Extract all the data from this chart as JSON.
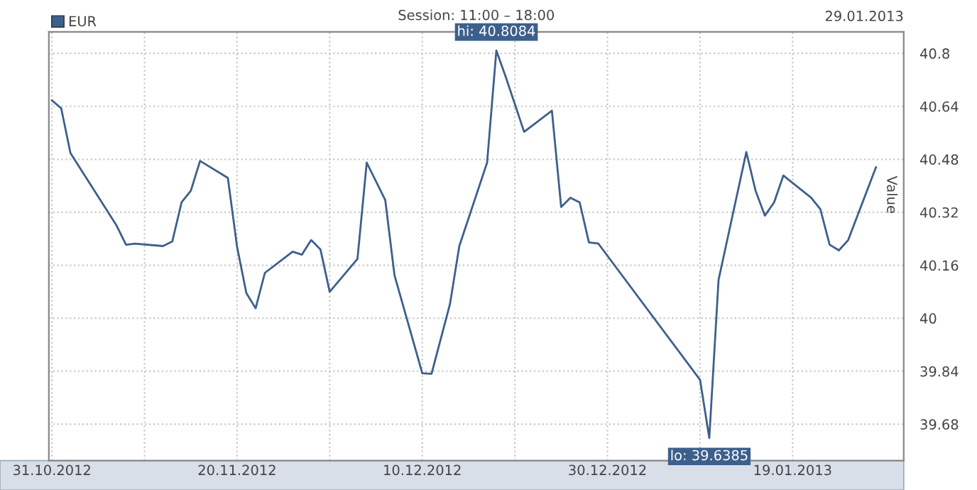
{
  "chart_data": {
    "type": "line",
    "title": "Session: 11:00 – 18:00",
    "ylabel": "Value",
    "annotations": [
      "29.01.2013",
      {
        "text": "hi: 40.8084",
        "x": "2012-12-18",
        "y": 40.8084
      },
      {
        "text": "lo: 39.6385",
        "x": "2013-01-10",
        "y": 39.6385
      }
    ],
    "x": [
      "2012-10-31",
      "2012-11-01",
      "2012-11-02",
      "2012-11-07",
      "2012-11-08",
      "2012-11-09",
      "2012-11-12",
      "2012-11-13",
      "2012-11-14",
      "2012-11-15",
      "2012-11-16",
      "2012-11-19",
      "2012-11-20",
      "2012-11-21",
      "2012-11-22",
      "2012-11-23",
      "2012-11-26",
      "2012-11-27",
      "2012-11-28",
      "2012-11-29",
      "2012-11-30",
      "2012-12-03",
      "2012-12-04",
      "2012-12-06",
      "2012-12-07",
      "2012-12-10",
      "2012-12-11",
      "2012-12-13",
      "2012-12-14",
      "2012-12-17",
      "2012-12-18",
      "2012-12-19",
      "2012-12-21",
      "2012-12-24",
      "2012-12-25",
      "2012-12-26",
      "2012-12-27",
      "2012-12-28",
      "2012-12-29",
      "2013-01-09",
      "2013-01-10",
      "2013-01-11",
      "2013-01-14",
      "2013-01-15",
      "2013-01-16",
      "2013-01-17",
      "2013-01-18",
      "2013-01-21",
      "2013-01-22",
      "2013-01-23",
      "2013-01-24",
      "2013-01-25",
      "2013-01-28"
    ],
    "series": [
      {
        "name": "EUR",
        "color": "#3d5f8c",
        "values": [
          40.658,
          40.634,
          40.499,
          40.279,
          40.222,
          40.225,
          40.218,
          40.232,
          40.35,
          40.385,
          40.475,
          40.424,
          40.215,
          40.076,
          40.03,
          40.137,
          40.201,
          40.192,
          40.236,
          40.208,
          40.08,
          40.179,
          40.47,
          40.357,
          40.13,
          39.834,
          39.832,
          40.044,
          40.218,
          40.47,
          40.8084,
          40.73,
          40.563,
          40.627,
          40.336,
          40.364,
          40.35,
          40.229,
          40.226,
          39.814,
          39.6385,
          40.116,
          40.502,
          40.385,
          40.31,
          40.35,
          40.431,
          40.364,
          40.329,
          40.222,
          40.205,
          40.236,
          40.456
        ]
      }
    ],
    "xlim": [
      "2012-10-30T16:00",
      "2013-01-31"
    ],
    "xticks": [
      {
        "value": "2012-10-31",
        "label": "31.10.2012"
      },
      {
        "value": "2012-11-10",
        "label": null
      },
      {
        "value": "2012-11-20",
        "label": "20.11.2012"
      },
      {
        "value": "2012-11-30",
        "label": null
      },
      {
        "value": "2012-12-10",
        "label": "10.12.2012"
      },
      {
        "value": "2012-12-20",
        "label": null
      },
      {
        "value": "2012-12-30",
        "label": "30.12.2012"
      },
      {
        "value": "2013-01-09",
        "label": null
      },
      {
        "value": "2013-01-19",
        "label": "19.01.2013"
      }
    ],
    "ylim": [
      39.57,
      40.865
    ],
    "yticks": [
      39.68,
      39.84,
      40,
      40.16,
      40.32,
      40.48,
      40.64,
      40.8
    ],
    "grid": true,
    "legend": "top left",
    "marker": "none",
    "line_style": "solid"
  }
}
